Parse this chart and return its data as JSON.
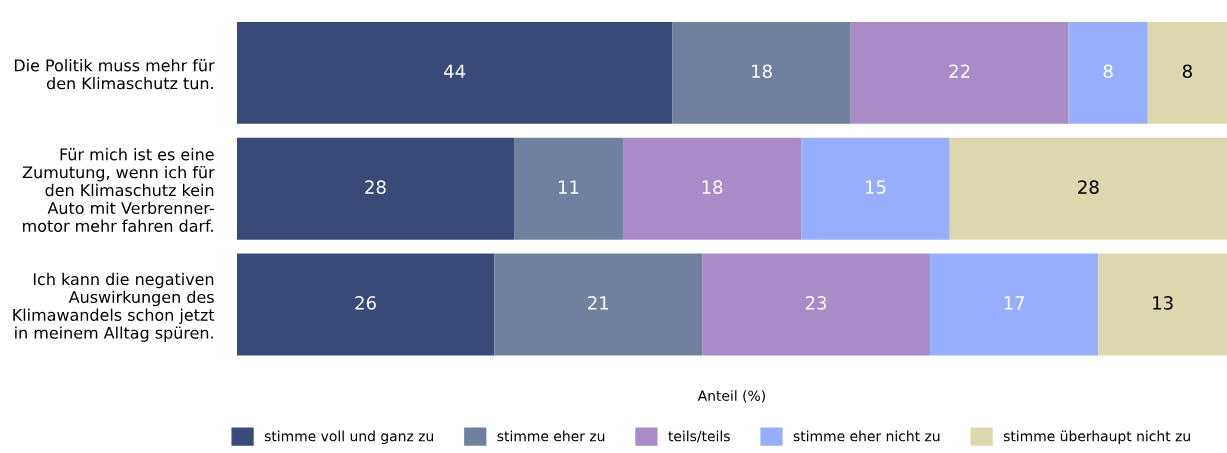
{
  "chart_data": {
    "type": "bar",
    "orientation": "horizontal",
    "stacked": true,
    "data_labels": true,
    "xlabel": "Anteil (%)",
    "xlim": [
      0,
      100
    ],
    "tick_labels": "y",
    "grid": false,
    "legend": "bottom",
    "categories": [
      "Die Politik muss mehr für\nden Klimaschutz tun.",
      "Für mich ist es eine\nZumutung, wenn ich für\nden Klimaschutz kein\nAuto mit Verbrenner-\nmotor mehr fahren darf.",
      "Ich kann die negativen\nAuswirkungen des\nKlimawandels schon jetzt\nin meinem Alltag spüren."
    ],
    "series": [
      {
        "name": "stimme voll und ganz zu",
        "color": "#394a78",
        "values": [
          44,
          28,
          26
        ]
      },
      {
        "name": "stimme eher zu",
        "color": "#71809f",
        "values": [
          18,
          11,
          21
        ]
      },
      {
        "name": "teils/teils",
        "color": "#a98bc8",
        "values": [
          22,
          18,
          23
        ]
      },
      {
        "name": "stimme eher nicht zu",
        "color": "#97aefc",
        "values": [
          8,
          15,
          17
        ]
      },
      {
        "name": "stimme überhaupt nicht zu",
        "color": "#ddd7ae",
        "values": [
          8,
          28,
          13
        ]
      }
    ]
  }
}
